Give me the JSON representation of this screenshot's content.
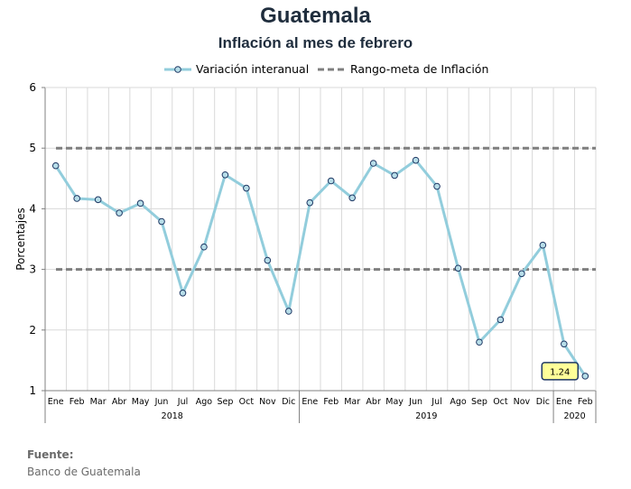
{
  "title": "Guatemala",
  "subtitle": "Inflación al mes de febrero",
  "source_label": "Fuente:",
  "source_text": "Banco de Guatemala",
  "colors": {
    "line": "#92cddc",
    "marker_fill": "#b7dde8",
    "marker_stroke": "#1f3864",
    "target": "#7f7f7f",
    "callout_fill": "#ffff99",
    "callout_stroke": "#1f3864"
  },
  "chart_data": {
    "type": "line",
    "ylabel": "Porcentajes",
    "ylim": [
      1,
      6
    ],
    "yticks": [
      1,
      2,
      3,
      4,
      5,
      6
    ],
    "categories": [
      "Ene",
      "Feb",
      "Mar",
      "Abr",
      "May",
      "Jun",
      "Jul",
      "Ago",
      "Sep",
      "Oct",
      "Nov",
      "Dic",
      "Ene",
      "Feb",
      "Mar",
      "Abr",
      "May",
      "Jun",
      "Jul",
      "Ago",
      "Sep",
      "Oct",
      "Nov",
      "Dic",
      "Ene",
      "Feb"
    ],
    "year_groups": [
      {
        "label": "2018",
        "count": 12
      },
      {
        "label": "2019",
        "count": 12
      },
      {
        "label": "2020",
        "count": 2
      }
    ],
    "series": [
      {
        "name": "Variación interanual",
        "style": "line-marker",
        "values": [
          4.71,
          4.17,
          4.15,
          3.93,
          4.09,
          3.79,
          2.61,
          3.37,
          4.56,
          4.34,
          3.15,
          2.31,
          4.1,
          4.46,
          4.18,
          4.75,
          4.55,
          4.8,
          4.37,
          3.02,
          1.8,
          2.17,
          2.93,
          3.4,
          1.77,
          1.24
        ]
      },
      {
        "name": "Rango-meta de Inflación",
        "style": "dashed",
        "values_upper": 5,
        "values_lower": 3
      }
    ],
    "callout": {
      "index": 25,
      "text": "1.24"
    },
    "grid": true,
    "legend_position": "top"
  }
}
